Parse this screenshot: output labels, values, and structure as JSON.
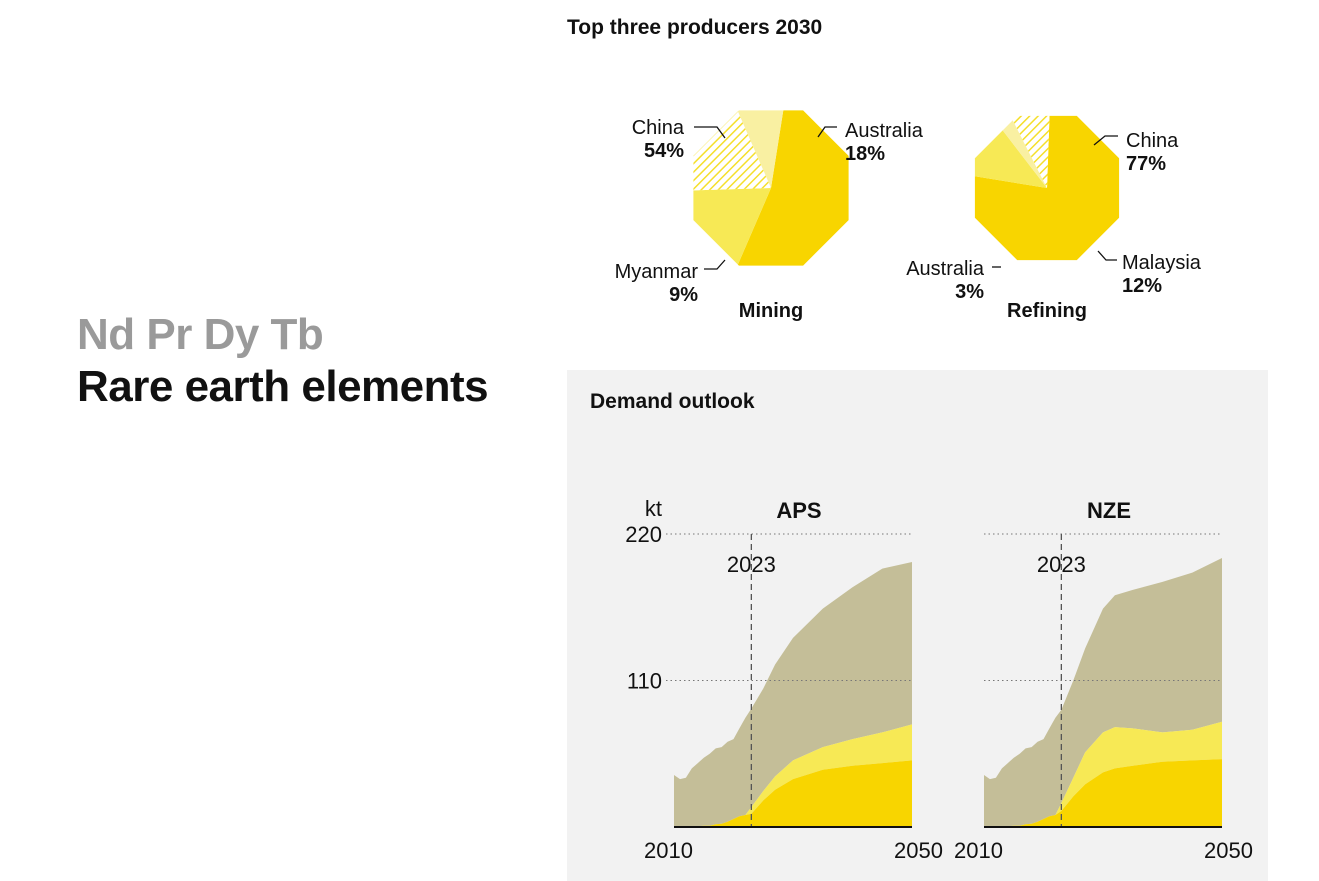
{
  "header": {
    "symbols": "Nd Pr Dy Tb",
    "title": "Rare earth elements"
  },
  "producers": {
    "title": "Top three producers 2030"
  },
  "demand": {
    "title": "Demand outlook"
  },
  "colors": {
    "dark_yellow": "#f8d500",
    "mid_yellow": "#f7e955",
    "light_yellow": "#f9f0a2",
    "taupe": "#c4be98",
    "panel_bg": "#f2f2f2"
  },
  "chart_data": [
    {
      "type": "pie",
      "title": "Mining",
      "slices": [
        {
          "label": "China",
          "value": 54,
          "display": "54%",
          "color": "#f8d500"
        },
        {
          "label": "Australia",
          "value": 18,
          "display": "18%",
          "color": "#f7e955"
        },
        {
          "label": "",
          "value": 19,
          "display": "",
          "color": "hatch"
        },
        {
          "label": "Myanmar",
          "value": 9,
          "display": "9%",
          "color": "#f9f0a2"
        }
      ]
    },
    {
      "type": "pie",
      "title": "Refining",
      "slices": [
        {
          "label": "China",
          "value": 77,
          "display": "77%",
          "color": "#f8d500"
        },
        {
          "label": "Malaysia",
          "value": 12,
          "display": "12%",
          "color": "#f7e955"
        },
        {
          "label": "Australia",
          "value": 3,
          "display": "3%",
          "color": "#f9f0a2"
        },
        {
          "label": "",
          "value": 8,
          "display": "",
          "color": "hatch"
        }
      ]
    },
    {
      "type": "area",
      "title": "APS",
      "ylabel": "kt",
      "ylim": [
        0,
        220
      ],
      "yticks": [
        220,
        110
      ],
      "xticks": [
        "2010",
        "2050"
      ],
      "marker": {
        "x": 2023,
        "label": "2023"
      },
      "x": [
        2010,
        2011,
        2012,
        2013,
        2014,
        2015,
        2016,
        2017,
        2018,
        2019,
        2020,
        2021,
        2022,
        2023,
        2025,
        2027,
        2030,
        2035,
        2040,
        2045,
        2050
      ],
      "series": [
        {
          "values": [
            0.5,
            0.5,
            0.5,
            0.5,
            0.5,
            1,
            1,
            2,
            2.5,
            4,
            6,
            8,
            9,
            10,
            20,
            28,
            36,
            43,
            46,
            48,
            50
          ],
          "color": "#f8d500"
        },
        {
          "values": [
            0.5,
            0.5,
            0.5,
            0.5,
            0.5,
            1,
            1,
            2,
            2.5,
            4,
            6,
            8,
            9,
            15,
            27,
            38,
            50,
            60,
            66,
            71,
            77
          ],
          "color": "#f7e955"
        },
        {
          "values": [
            39,
            36,
            37,
            44,
            48,
            52,
            55,
            59,
            60,
            64,
            66,
            74,
            82,
            89,
            104,
            122,
            142,
            164,
            180,
            194,
            199
          ],
          "color": "#c4be98"
        }
      ]
    },
    {
      "type": "area",
      "title": "NZE",
      "ylabel": "",
      "ylim": [
        0,
        220
      ],
      "yticks": [
        220,
        110
      ],
      "xticks": [
        "2010",
        "2050"
      ],
      "marker": {
        "x": 2023,
        "label": "2023"
      },
      "x": [
        2010,
        2011,
        2012,
        2013,
        2014,
        2015,
        2016,
        2017,
        2018,
        2019,
        2020,
        2021,
        2022,
        2023,
        2025,
        2027,
        2030,
        2032,
        2035,
        2040,
        2045,
        2050
      ],
      "series": [
        {
          "values": [
            0.5,
            0.5,
            0.5,
            0.5,
            0.5,
            1,
            1,
            2,
            2.5,
            4,
            6,
            8,
            9,
            12,
            23,
            32,
            41,
            44,
            46,
            49,
            50,
            51
          ],
          "color": "#f8d500"
        },
        {
          "values": [
            0.5,
            0.5,
            0.5,
            0.5,
            0.5,
            1,
            1,
            2,
            2.5,
            4,
            6,
            8,
            9,
            18,
            37,
            56,
            71,
            75,
            74,
            71,
            73,
            79
          ],
          "color": "#f7e955"
        },
        {
          "values": [
            39,
            36,
            37,
            44,
            48,
            52,
            55,
            59,
            60,
            64,
            66,
            74,
            82,
            88,
            110,
            134,
            164,
            174,
            178,
            184,
            191,
            202
          ],
          "color": "#c4be98"
        }
      ]
    }
  ]
}
